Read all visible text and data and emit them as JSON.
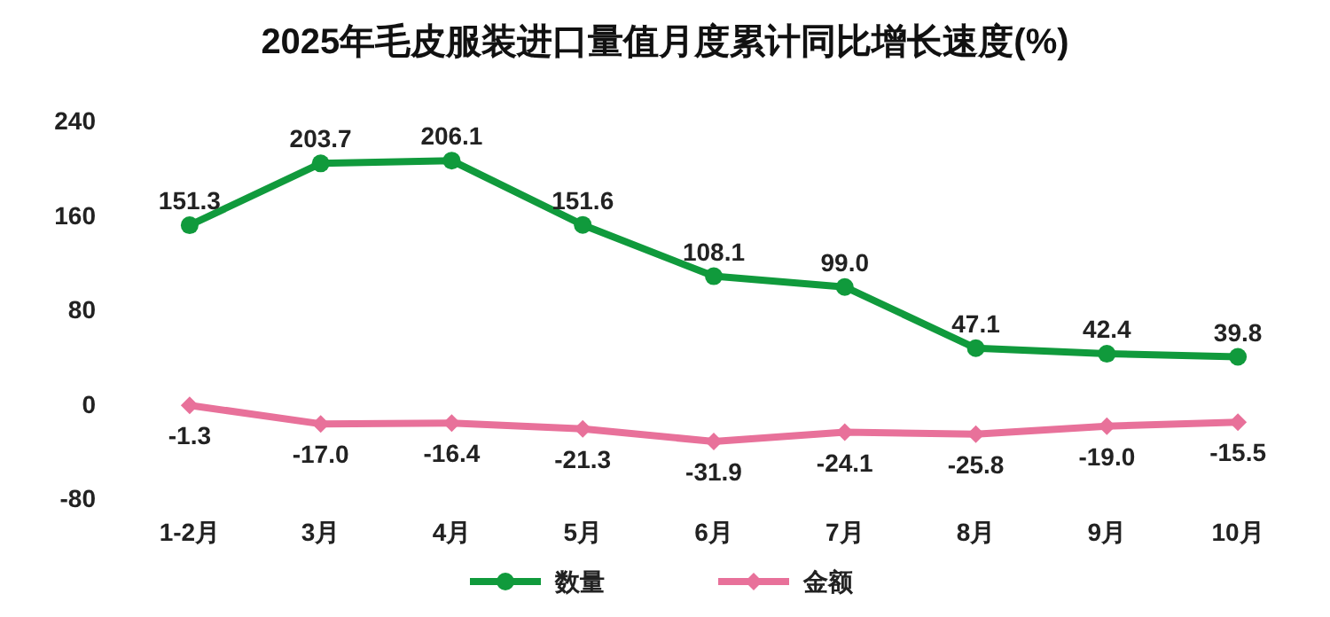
{
  "chart_data": {
    "type": "line",
    "title": "2025年毛皮服装进口量值月度累计同比增长速度(%)",
    "categories": [
      "1-2月",
      "3月",
      "4月",
      "5月",
      "6月",
      "7月",
      "8月",
      "9月",
      "10月"
    ],
    "series": [
      {
        "name": "数量",
        "color": "#109a3c",
        "marker": "circle",
        "values": [
          151.3,
          203.7,
          206.1,
          151.6,
          108.1,
          99.0,
          47.1,
          42.4,
          39.8
        ],
        "value_labels": [
          "151.3",
          "203.7",
          "206.1",
          "151.6",
          "108.1",
          "99.0",
          "47.1",
          "42.4",
          "39.8"
        ]
      },
      {
        "name": "金额",
        "color": "#e8719a",
        "marker": "diamond",
        "values": [
          -1.3,
          -17.0,
          -16.4,
          -21.3,
          -31.9,
          -24.1,
          -25.8,
          -19.0,
          -15.5
        ],
        "value_labels": [
          "-1.3",
          "-17.0",
          "-16.4",
          "-21.3",
          "-31.9",
          "-24.1",
          "-25.8",
          "-19.0",
          "-15.5"
        ]
      }
    ],
    "ylim": [
      -80,
      240
    ],
    "yticks": [
      -80,
      0,
      80,
      160,
      240
    ],
    "legend": "bottom",
    "grid": false
  }
}
